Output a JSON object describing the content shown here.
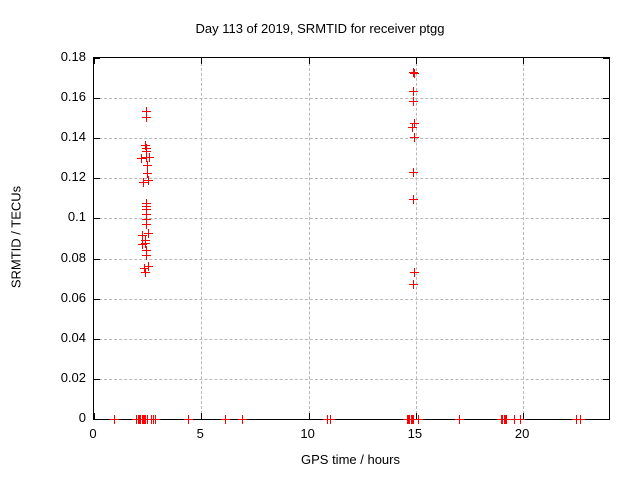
{
  "window": {
    "background": "#ffffff"
  },
  "chart_data": {
    "type": "scatter",
    "title": "Day 113 of 2019, SRMTID for receiver ptgg",
    "xlabel": "GPS time / hours",
    "ylabel": "SRMTID / TECUs",
    "xlim": [
      0,
      24
    ],
    "ylim": [
      0,
      0.18
    ],
    "xticks": [
      0,
      5,
      10,
      15,
      20
    ],
    "xtick_labels": [
      "0",
      "5",
      "10",
      "15",
      "20"
    ],
    "yticks": [
      0,
      0.02,
      0.04,
      0.06,
      0.08,
      0.1,
      0.12,
      0.14,
      0.16,
      0.18
    ],
    "ytick_labels": [
      "0",
      "0.02",
      "0.04",
      "0.06",
      "0.08",
      "0.1",
      "0.12",
      "0.14",
      "0.16",
      "0.18"
    ],
    "grid": true,
    "legend_position": "none",
    "marker": "plus",
    "marker_color": "#ff0000",
    "grid_color": "#b8b8b8",
    "series": [
      {
        "name": "SRMTID",
        "points": [
          [
            2.43,
            0.1535
          ],
          [
            2.43,
            0.1505
          ],
          [
            2.42,
            0.1362
          ],
          [
            2.44,
            0.1348
          ],
          [
            2.45,
            0.1332
          ],
          [
            2.22,
            0.13
          ],
          [
            2.45,
            0.1303
          ],
          [
            2.58,
            0.1306
          ],
          [
            2.47,
            0.1262
          ],
          [
            2.47,
            0.1223
          ],
          [
            2.53,
            0.119
          ],
          [
            2.33,
            0.1178
          ],
          [
            2.45,
            0.1075
          ],
          [
            2.45,
            0.106
          ],
          [
            2.45,
            0.1044
          ],
          [
            2.45,
            0.1019
          ],
          [
            2.45,
            0.0993
          ],
          [
            2.45,
            0.0972
          ],
          [
            2.56,
            0.0925
          ],
          [
            2.28,
            0.0915
          ],
          [
            2.38,
            0.089
          ],
          [
            2.42,
            0.0874
          ],
          [
            2.28,
            0.0868
          ],
          [
            2.45,
            0.0838
          ],
          [
            2.45,
            0.0814
          ],
          [
            2.55,
            0.0762
          ],
          [
            2.35,
            0.0752
          ],
          [
            2.42,
            0.0728
          ],
          [
            14.9,
            0.173
          ],
          [
            14.95,
            0.1722
          ],
          [
            14.88,
            0.1631
          ],
          [
            14.88,
            0.1584
          ],
          [
            14.93,
            0.1475
          ],
          [
            14.85,
            0.1455
          ],
          [
            14.92,
            0.1405
          ],
          [
            14.88,
            0.1228
          ],
          [
            14.88,
            0.1094
          ],
          [
            14.93,
            0.0729
          ],
          [
            14.88,
            0.0672
          ],
          [
            0.95,
            0
          ],
          [
            2.0,
            0
          ],
          [
            2.06,
            0
          ],
          [
            2.12,
            0
          ],
          [
            2.18,
            0
          ],
          [
            2.24,
            0
          ],
          [
            2.3,
            0
          ],
          [
            2.36,
            0
          ],
          [
            2.42,
            0
          ],
          [
            2.48,
            0
          ],
          [
            2.7,
            0
          ],
          [
            2.78,
            0
          ],
          [
            2.86,
            0
          ],
          [
            4.42,
            0
          ],
          [
            6.15,
            0
          ],
          [
            6.93,
            0
          ],
          [
            10.88,
            0
          ],
          [
            11.04,
            0
          ],
          [
            14.6,
            0
          ],
          [
            14.66,
            0
          ],
          [
            14.72,
            0
          ],
          [
            14.78,
            0
          ],
          [
            14.84,
            0
          ],
          [
            14.9,
            0
          ],
          [
            15.1,
            0
          ],
          [
            17.02,
            0
          ],
          [
            19.0,
            0
          ],
          [
            19.06,
            0
          ],
          [
            19.12,
            0
          ],
          [
            19.18,
            0
          ],
          [
            19.24,
            0
          ],
          [
            19.6,
            0
          ],
          [
            19.88,
            0
          ],
          [
            22.48,
            0
          ],
          [
            22.65,
            0
          ]
        ]
      }
    ]
  }
}
